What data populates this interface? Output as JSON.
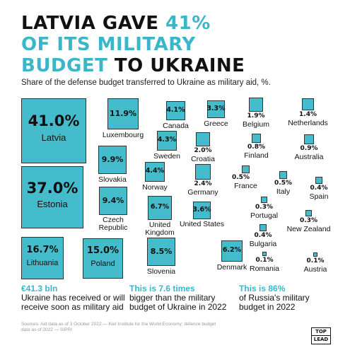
{
  "colors": {
    "accent": "#39b6c9",
    "square": "#45bccb",
    "border": "#333333"
  },
  "title": {
    "line1": "LATVIA GAVE ",
    "line1_accent": "41%",
    "line2": "OF ITS MILITARY",
    "line3_accent": "BUDGET",
    "line3": " TO UKRAINE"
  },
  "subtitle": "Share of the defense budget transferred to Ukraine as military aid, %.",
  "chart_data": {
    "type": "proportional-area squares",
    "unit": "%",
    "items": [
      {
        "country": "Latvia",
        "value": 41.0,
        "label": "41.0%"
      },
      {
        "country": "Estonia",
        "value": 37.0,
        "label": "37.0%"
      },
      {
        "country": "Lithuania",
        "value": 16.7,
        "label": "16.7%"
      },
      {
        "country": "Poland",
        "value": 15.0,
        "label": "15.0%"
      },
      {
        "country": "Luxembourg",
        "value": 11.9,
        "label": "11.9%"
      },
      {
        "country": "Slovakia",
        "value": 9.9,
        "label": "9.9%"
      },
      {
        "country": "Czech Republic",
        "value": 9.4,
        "label": "9.4%"
      },
      {
        "country": "Slovenia",
        "value": 8.5,
        "label": "8.5%"
      },
      {
        "country": "United Kingdom",
        "value": 6.7,
        "label": "6.7%"
      },
      {
        "country": "Denmark",
        "value": 6.2,
        "label": "6.2%"
      },
      {
        "country": "Norway",
        "value": 4.4,
        "label": "4.4%"
      },
      {
        "country": "Sweden",
        "value": 4.3,
        "label": "4.3%"
      },
      {
        "country": "Canada",
        "value": 4.1,
        "label": "4.1%"
      },
      {
        "country": "United States",
        "value": 3.6,
        "label": "3.6%"
      },
      {
        "country": "Greece",
        "value": 3.3,
        "label": "3.3%"
      },
      {
        "country": "Germany",
        "value": 2.4,
        "label": "2.4%"
      },
      {
        "country": "Croatia",
        "value": 2.0,
        "label": "2.0%"
      },
      {
        "country": "Belgium",
        "value": 1.9,
        "label": "1.9%"
      },
      {
        "country": "Netherlands",
        "value": 1.4,
        "label": "1.4%"
      },
      {
        "country": "Australia",
        "value": 0.9,
        "label": "0.9%"
      },
      {
        "country": "Finland",
        "value": 0.8,
        "label": "0.8%"
      },
      {
        "country": "France",
        "value": 0.5,
        "label": "0.5%"
      },
      {
        "country": "Italy",
        "value": 0.5,
        "label": "0.5%"
      },
      {
        "country": "Spain",
        "value": 0.4,
        "label": "0.4%"
      },
      {
        "country": "Bulgaria",
        "value": 0.4,
        "label": "0.4%"
      },
      {
        "country": "Portugal",
        "value": 0.3,
        "label": "0.3%"
      },
      {
        "country": "New Zealand",
        "value": 0.3,
        "label": "0.3%"
      },
      {
        "country": "Romania",
        "value": 0.1,
        "label": "0.1%"
      },
      {
        "country": "Austria",
        "value": 0.1,
        "label": "0.1%"
      }
    ]
  },
  "facts": [
    {
      "highlight": "€41.3 bln",
      "text": "Ukraine has received or will receive soon as military aid"
    },
    {
      "highlight": "This is 7.6 times",
      "text": "bigger than the military budget of Ukraine in 2022"
    },
    {
      "highlight": "This is 86%",
      "text": "of Russia's military budget in 2022"
    }
  ],
  "source": "Sources: Aid data as of 3 October 2022 — Kiel Institute for the World Economy; defence budget data as of 2022 — SIPRI",
  "logo": {
    "line1": "TOP",
    "line2": "LEAD"
  }
}
